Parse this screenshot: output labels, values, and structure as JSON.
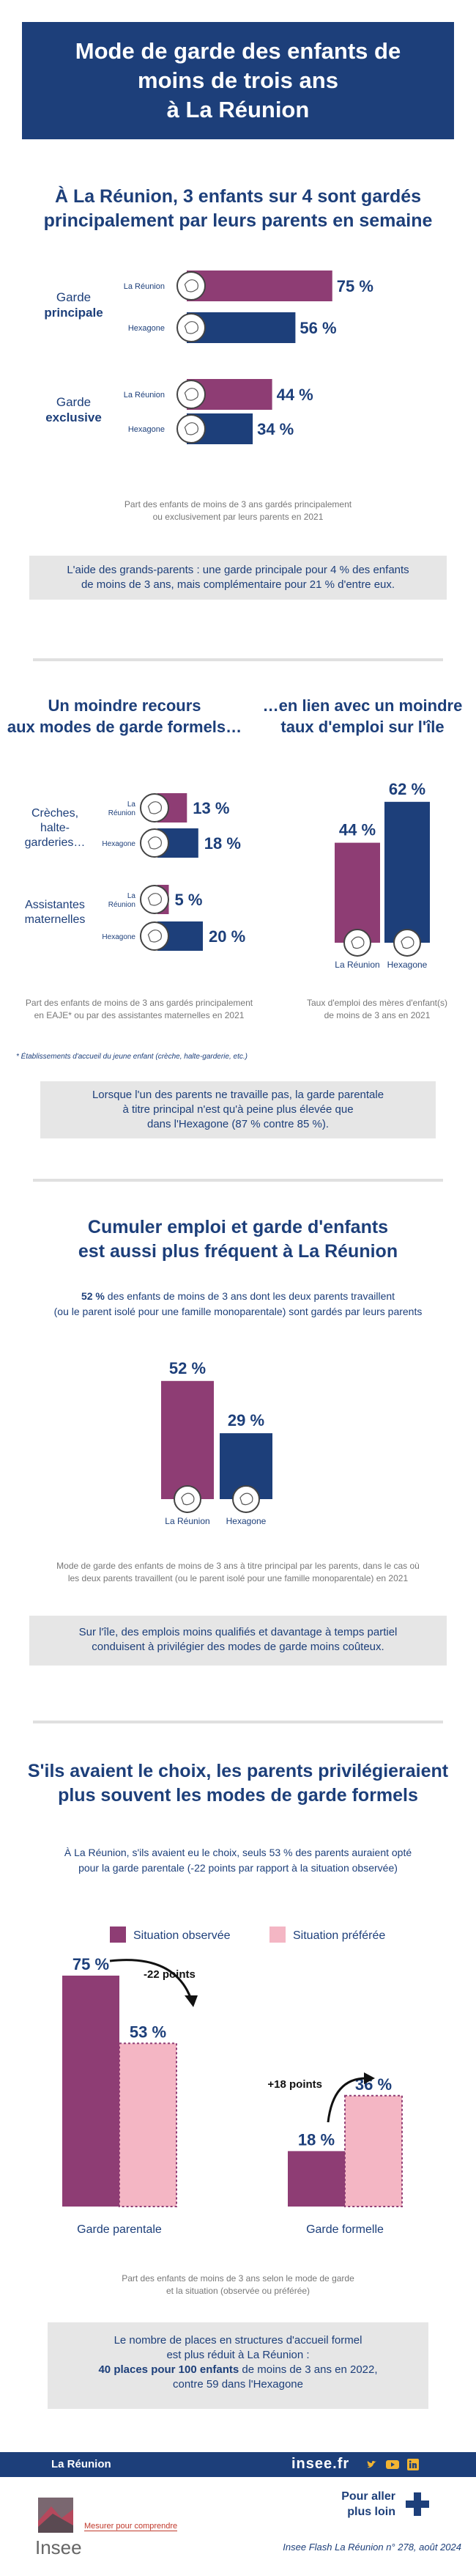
{
  "header": {
    "title_line1": "Mode de garde des enfants de",
    "title_line2": "moins de trois ans",
    "title_line3": "à La Réunion"
  },
  "section1": {
    "title_line1": "À La Réunion, 3 enfants sur 4 sont gardés",
    "title_line2": "principalement par leurs parents en semaine",
    "cat1_line1": "Garde",
    "cat1_line2": "principale",
    "cat2_line1": "Garde",
    "cat2_line2": "exclusive",
    "note_line1": "Part des enfants de moins de 3 ans gardés principalement",
    "note_line2": "ou exclusivement par leurs parents en 2021",
    "box_line1": "L'aide des grands-parents : une garde principale pour 4 % des enfants",
    "box_line2": "de moins de 3 ans, mais complémentaire pour 21 % d'entre eux."
  },
  "section2": {
    "left_title_line1": "Un moindre recours",
    "left_title_line2": "aux modes de garde formels…",
    "right_title_line1": "…en lien avec un moindre",
    "right_title_line2": "taux d'emploi sur l'île",
    "cat1_line1": "Crèches,",
    "cat1_line2": "halte-",
    "cat1_line3": "garderies…",
    "cat2_line1": "Assistantes",
    "cat2_line2": "maternelles",
    "left_note_line1": "Part des enfants de moins de 3 ans gardés principalement",
    "left_note_line2": "en EAJE* ou par des assistantes maternelles en 2021",
    "right_note_line1": "Taux d'emploi des mères d'enfant(s)",
    "right_note_line2": "de moins de 3 ans en 2021",
    "footnote": "* Établissements d'accueil du jeune enfant (crèche, halte-garderie, etc.)",
    "box_line1": "Lorsque l'un des parents ne travaille pas, la garde parentale",
    "box_line2": "à titre principal n'est qu'à peine plus élevée que",
    "box_line3": "dans l'Hexagone (87 % contre 85 %)."
  },
  "section3": {
    "title_line1": "Cumuler emploi et garde d'enfants",
    "title_line2": "est aussi plus fréquent à La Réunion",
    "intro_bold": "52 %",
    "intro_line1_rest": " des enfants de moins de 3 ans dont les deux parents travaillent",
    "intro_line2": "(ou le parent isolé pour une famille monoparentale) sont gardés par leurs parents",
    "note_line1": "Mode de garde des enfants de moins de 3 ans à titre principal par les parents, dans le cas où",
    "note_line2": "les deux parents travaillent (ou le parent isolé pour une famille monoparentale) en 2021",
    "box_line1": "Sur l'île, des emplois moins qualifiés et davantage à temps partiel",
    "box_line2": "conduisent à privilégier des modes de garde moins coûteux."
  },
  "section4": {
    "title_line1": "S'ils avaient le choix, les parents privilégieraient",
    "title_line2": "plus souvent les modes de garde formels",
    "intro_line1": "À La Réunion, s'ils avaient eu le choix, seuls 53 % des parents auraient opté",
    "intro_line2": "pour la garde parentale (-22 points par rapport à la situation observée)",
    "arrow_label1": "-22 points",
    "arrow_label2": "+18 points",
    "note_line1": "Part des enfants de moins de 3 ans selon le mode de garde",
    "note_line2": "et la situation (observée ou préférée)",
    "box_line1": "Le nombre de places en structures d'accueil formel",
    "box_line2": "est plus réduit à La Réunion :",
    "box_line3_bold": "40 places pour 100 enfants",
    "box_line3_rest": " de moins de 3 ans en 2022,",
    "box_line4": "contre 59 dans l'Hexagone"
  },
  "footer": {
    "region": "La Réunion",
    "site": "insee.fr",
    "brand": "Insee",
    "tagline": "Mesurer pour comprendre",
    "cta_line1": "Pour aller",
    "cta_line2": "plus loin",
    "source": "Insee Flash La Réunion n° 278, août 2024"
  },
  "colors": {
    "reunion": "#8e3d74",
    "hexagone": "#1d3f7a",
    "observee": "#8e3d74",
    "preferee": "#f4b6c4",
    "navy": "#1d3f7a"
  },
  "chart_data": [
    {
      "type": "bar",
      "orientation": "horizontal",
      "categories": [
        "Garde principale",
        "Garde exclusive"
      ],
      "series": [
        {
          "name": "La Réunion",
          "values": [
            75,
            44
          ],
          "labels": [
            "75 %",
            "44 %"
          ]
        },
        {
          "name": "Hexagone",
          "values": [
            56,
            34
          ],
          "labels": [
            "56 %",
            "34 %"
          ]
        }
      ],
      "xlim": [
        0,
        100
      ]
    },
    {
      "type": "bar",
      "orientation": "horizontal",
      "categories": [
        "Crèches, halte-garderies…",
        "Assistantes maternelles"
      ],
      "series": [
        {
          "name": "La Réunion",
          "values": [
            13,
            5
          ],
          "labels": [
            "13 %",
            "5 %"
          ]
        },
        {
          "name": "Hexagone",
          "values": [
            18,
            20
          ],
          "labels": [
            "18 %",
            "20 %"
          ]
        }
      ],
      "xlim": [
        0,
        100
      ]
    },
    {
      "type": "bar",
      "categories": [
        "La Réunion",
        "Hexagone"
      ],
      "values": [
        44,
        62
      ],
      "labels": [
        "44 %",
        "62 %"
      ],
      "ylim": [
        0,
        100
      ]
    },
    {
      "type": "bar",
      "categories": [
        "La Réunion",
        "Hexagone"
      ],
      "values": [
        52,
        29
      ],
      "labels": [
        "52 %",
        "29 %"
      ],
      "ylim": [
        0,
        100
      ]
    },
    {
      "type": "bar",
      "categories": [
        "Garde parentale",
        "Garde formelle"
      ],
      "series": [
        {
          "name": "Situation observée",
          "values": [
            75,
            18
          ],
          "labels": [
            "75 %",
            "18 %"
          ]
        },
        {
          "name": "Situation préférée",
          "values": [
            53,
            36
          ],
          "labels": [
            "53 %",
            "36 %"
          ]
        }
      ],
      "ylim": [
        0,
        100
      ],
      "legend": "top"
    }
  ]
}
